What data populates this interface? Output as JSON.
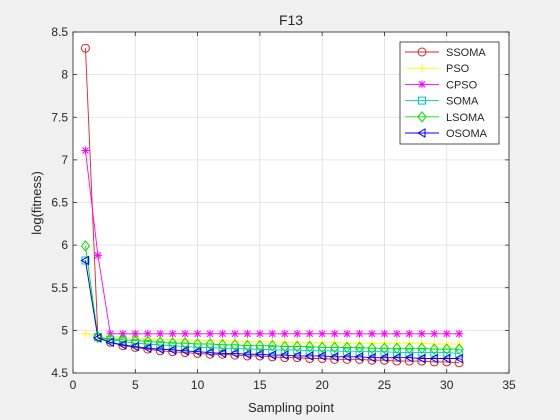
{
  "chart_data": {
    "type": "line",
    "title": "F13",
    "xlabel": "Sampling point",
    "ylabel": "log(fitness)",
    "xlim": [
      0,
      35
    ],
    "ylim": [
      4.5,
      8.5
    ],
    "xticks": [
      0,
      5,
      10,
      15,
      20,
      25,
      30,
      35
    ],
    "yticks": [
      4.5,
      5,
      5.5,
      6,
      6.5,
      7,
      7.5,
      8,
      8.5
    ],
    "grid": true,
    "legend_position": "top-right",
    "x": [
      1,
      2,
      3,
      4,
      5,
      6,
      7,
      8,
      9,
      10,
      11,
      12,
      13,
      14,
      15,
      16,
      17,
      18,
      19,
      20,
      21,
      22,
      23,
      24,
      25,
      26,
      27,
      28,
      29,
      30,
      31
    ],
    "series": [
      {
        "name": "SSOMA",
        "color": "#d62728",
        "marker": "circle",
        "values": [
          8.31,
          4.92,
          4.86,
          4.82,
          4.8,
          4.78,
          4.76,
          4.75,
          4.74,
          4.73,
          4.72,
          4.72,
          4.71,
          4.7,
          4.7,
          4.69,
          4.68,
          4.68,
          4.67,
          4.67,
          4.66,
          4.66,
          4.66,
          4.65,
          4.65,
          4.64,
          4.64,
          4.64,
          4.63,
          4.63,
          4.62
        ]
      },
      {
        "name": "PSO",
        "color": "#ffff00",
        "marker": "plus",
        "values": [
          4.96,
          4.94,
          4.93,
          4.92,
          4.91,
          4.9,
          4.9,
          4.89,
          4.89,
          4.88,
          4.88,
          4.88,
          4.87,
          4.87,
          4.87,
          4.87,
          4.86,
          4.86,
          4.86,
          4.86,
          4.86,
          4.85,
          4.85,
          4.85,
          4.85,
          4.85,
          4.85,
          4.85,
          4.84,
          4.84,
          4.84
        ]
      },
      {
        "name": "CPSO",
        "color": "#ff00ff",
        "marker": "star",
        "values": [
          7.11,
          5.88,
          4.96,
          4.96,
          4.96,
          4.96,
          4.96,
          4.96,
          4.96,
          4.96,
          4.96,
          4.96,
          4.96,
          4.96,
          4.96,
          4.96,
          4.96,
          4.96,
          4.96,
          4.96,
          4.96,
          4.96,
          4.96,
          4.96,
          4.96,
          4.96,
          4.96,
          4.96,
          4.96,
          4.96,
          4.96
        ]
      },
      {
        "name": "SOMA",
        "color": "#00c8c8",
        "marker": "square",
        "values": [
          5.82,
          4.92,
          4.89,
          4.87,
          4.85,
          4.84,
          4.83,
          4.82,
          4.81,
          4.8,
          4.8,
          4.79,
          4.79,
          4.78,
          4.78,
          4.77,
          4.77,
          4.77,
          4.76,
          4.76,
          4.76,
          4.75,
          4.75,
          4.75,
          4.75,
          4.74,
          4.74,
          4.74,
          4.74,
          4.74,
          4.73
        ]
      },
      {
        "name": "LSOMA",
        "color": "#00e000",
        "marker": "diamond",
        "values": [
          5.99,
          4.92,
          4.9,
          4.89,
          4.88,
          4.87,
          4.86,
          4.85,
          4.85,
          4.84,
          4.84,
          4.83,
          4.83,
          4.82,
          4.82,
          4.82,
          4.81,
          4.81,
          4.81,
          4.8,
          4.8,
          4.8,
          4.8,
          4.79,
          4.79,
          4.79,
          4.79,
          4.79,
          4.78,
          4.78,
          4.78
        ]
      },
      {
        "name": "OSOMA",
        "color": "#0000ff",
        "marker": "triangle-left",
        "values": [
          5.82,
          4.91,
          4.86,
          4.83,
          4.81,
          4.79,
          4.78,
          4.77,
          4.76,
          4.75,
          4.74,
          4.73,
          4.73,
          4.72,
          4.72,
          4.71,
          4.71,
          4.7,
          4.7,
          4.7,
          4.69,
          4.69,
          4.69,
          4.68,
          4.68,
          4.68,
          4.68,
          4.67,
          4.67,
          4.67,
          4.67
        ]
      }
    ]
  }
}
